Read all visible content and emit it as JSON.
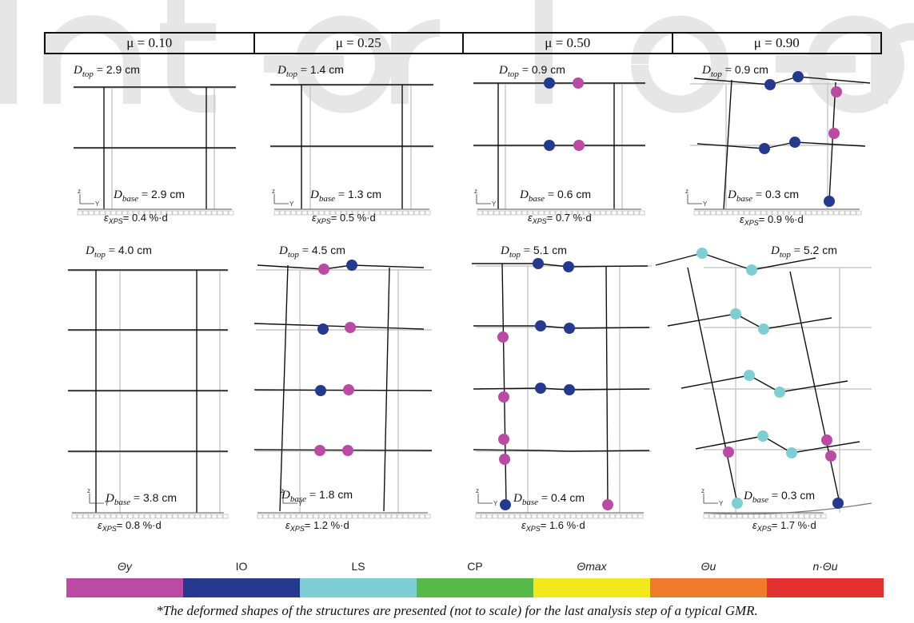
{
  "columns": [
    {
      "mu_label": "μ = 0.10"
    },
    {
      "mu_label": "μ = 0.25"
    },
    {
      "mu_label": "μ = 0.50"
    },
    {
      "mu_label": "μ = 0.90"
    }
  ],
  "panels": [
    {
      "id": "r1c1",
      "d_top": "2.9 cm",
      "d_base": "2.9 cm",
      "eps": "0.4 %·d"
    },
    {
      "id": "r1c2",
      "d_top": "1.4 cm",
      "d_base": "1.3 cm",
      "eps": "0.5 %·d"
    },
    {
      "id": "r1c3",
      "d_top": "0.9 cm",
      "d_base": "0.6 cm",
      "eps": "0.7 %·d"
    },
    {
      "id": "r1c4",
      "d_top": "0.9 cm",
      "d_base": "0.3 cm",
      "eps": "0.9 %·d"
    },
    {
      "id": "r2c1",
      "d_top": "4.0 cm",
      "d_base": "3.8 cm",
      "eps": "0.8 %·d"
    },
    {
      "id": "r2c2",
      "d_top": "4.5 cm",
      "d_base": "1.8 cm",
      "eps": "1.2 %·d"
    },
    {
      "id": "r2c3",
      "d_top": "5.1 cm",
      "d_base": "0.4 cm",
      "eps": "1.6 %·d"
    },
    {
      "id": "r2c4",
      "d_top": "5.2 cm",
      "d_base": "0.3 cm",
      "eps": "1.7 %·d"
    }
  ],
  "symbols": {
    "d_top": "D",
    "d_top_sub": "top",
    "d_base": "D",
    "d_base_sub": "base",
    "eps": "ε",
    "eps_sub": "XPS",
    "axis_z": "z",
    "axis_y": "Y"
  },
  "legend": [
    {
      "label": "Θy",
      "color": "#bb4aa4"
    },
    {
      "label": "IO",
      "color": "#253a8e"
    },
    {
      "label": "LS",
      "color": "#7dcfd4"
    },
    {
      "label": "CP",
      "color": "#57b947"
    },
    {
      "label": "Θmax",
      "color": "#f2e91c"
    },
    {
      "label": "Θu",
      "color": "#ee7a2a"
    },
    {
      "label": "n·Θu",
      "color": "#e3302f"
    }
  ],
  "footnote": "*The deformed shapes of the structures are presented (not to scale) for the last analysis step of a typical GMR."
}
